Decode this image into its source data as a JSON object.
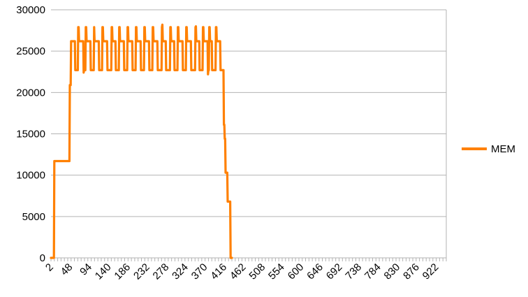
{
  "chart_data": {
    "type": "line",
    "title": "",
    "xlabel": "",
    "ylabel": "",
    "ylim": [
      0,
      30000
    ],
    "yticks": [
      0,
      5000,
      10000,
      15000,
      20000,
      25000,
      30000
    ],
    "xlim": [
      2,
      946
    ],
    "xtick_labels": [
      "2",
      "48",
      "94",
      "140",
      "186",
      "232",
      "278",
      "324",
      "370",
      "416",
      "462",
      "508",
      "554",
      "600",
      "646",
      "692",
      "738",
      "784",
      "830",
      "876",
      "922"
    ],
    "grid": "horizontal",
    "legend_position": "right",
    "series": [
      {
        "name": "MEM",
        "color": "#ff8000",
        "points": [
          [
            2,
            0
          ],
          [
            9,
            0
          ],
          [
            10,
            11700
          ],
          [
            46,
            11700
          ],
          [
            47,
            20900
          ],
          [
            49,
            20900
          ],
          [
            50,
            26200
          ],
          [
            59,
            26200
          ],
          [
            60,
            22700
          ],
          [
            66,
            22700
          ],
          [
            67,
            27900
          ],
          [
            68,
            27900
          ],
          [
            69,
            26200
          ],
          [
            79,
            26200
          ],
          [
            80,
            22400
          ],
          [
            81,
            22700
          ],
          [
            84,
            22700
          ],
          [
            85,
            27900
          ],
          [
            86,
            27900
          ],
          [
            87,
            26200
          ],
          [
            96,
            26200
          ],
          [
            97,
            22700
          ],
          [
            104,
            22700
          ],
          [
            105,
            27900
          ],
          [
            106,
            26200
          ],
          [
            107,
            26200
          ],
          [
            116,
            26200
          ],
          [
            117,
            22700
          ],
          [
            124,
            22700
          ],
          [
            125,
            27900
          ],
          [
            126,
            27900
          ],
          [
            127,
            26200
          ],
          [
            136,
            26200
          ],
          [
            137,
            22700
          ],
          [
            146,
            22700
          ],
          [
            147,
            27900
          ],
          [
            148,
            27900
          ],
          [
            149,
            26200
          ],
          [
            156,
            26200
          ],
          [
            157,
            22700
          ],
          [
            164,
            22700
          ],
          [
            165,
            27900
          ],
          [
            166,
            27900
          ],
          [
            167,
            26200
          ],
          [
            176,
            26200
          ],
          [
            177,
            22700
          ],
          [
            184,
            22700
          ],
          [
            185,
            27900
          ],
          [
            186,
            27900
          ],
          [
            187,
            26200
          ],
          [
            196,
            26200
          ],
          [
            197,
            22700
          ],
          [
            204,
            22700
          ],
          [
            205,
            27900
          ],
          [
            206,
            27900
          ],
          [
            207,
            26200
          ],
          [
            216,
            26200
          ],
          [
            217,
            22700
          ],
          [
            224,
            22700
          ],
          [
            225,
            27900
          ],
          [
            226,
            27900
          ],
          [
            227,
            26200
          ],
          [
            236,
            26200
          ],
          [
            237,
            22700
          ],
          [
            244,
            22700
          ],
          [
            245,
            27900
          ],
          [
            246,
            27900
          ],
          [
            247,
            26200
          ],
          [
            256,
            26200
          ],
          [
            257,
            22700
          ],
          [
            266,
            22700
          ],
          [
            267,
            27900
          ],
          [
            268,
            28200
          ],
          [
            269,
            26200
          ],
          [
            276,
            26200
          ],
          [
            277,
            22700
          ],
          [
            286,
            22700
          ],
          [
            287,
            27900
          ],
          [
            288,
            27900
          ],
          [
            289,
            26200
          ],
          [
            296,
            26200
          ],
          [
            297,
            22700
          ],
          [
            304,
            22700
          ],
          [
            305,
            27900
          ],
          [
            306,
            27900
          ],
          [
            307,
            26200
          ],
          [
            316,
            26200
          ],
          [
            317,
            22700
          ],
          [
            324,
            22700
          ],
          [
            325,
            27900
          ],
          [
            326,
            27900
          ],
          [
            327,
            26200
          ],
          [
            336,
            26200
          ],
          [
            337,
            22700
          ],
          [
            346,
            22700
          ],
          [
            347,
            27900
          ],
          [
            348,
            28000
          ],
          [
            349,
            26200
          ],
          [
            356,
            26200
          ],
          [
            357,
            22700
          ],
          [
            364,
            22700
          ],
          [
            365,
            27900
          ],
          [
            366,
            27900
          ],
          [
            367,
            26200
          ],
          [
            376,
            26200
          ],
          [
            377,
            22200
          ],
          [
            378,
            22700
          ],
          [
            379,
            22700
          ],
          [
            380,
            27900
          ],
          [
            381,
            27900
          ],
          [
            382,
            26200
          ],
          [
            386,
            26200
          ],
          [
            387,
            22700
          ],
          [
            394,
            22700
          ],
          [
            395,
            22700
          ],
          [
            396,
            27900
          ],
          [
            397,
            27900
          ],
          [
            398,
            26200
          ],
          [
            406,
            26200
          ],
          [
            407,
            22700
          ],
          [
            414,
            22700
          ],
          [
            415,
            16100
          ],
          [
            416,
            16100
          ],
          [
            417,
            14400
          ],
          [
            418,
            14400
          ],
          [
            419,
            10300
          ],
          [
            423,
            10300
          ],
          [
            424,
            6800
          ],
          [
            430,
            6800
          ],
          [
            431,
            0
          ],
          [
            434,
            0
          ]
        ]
      }
    ]
  }
}
